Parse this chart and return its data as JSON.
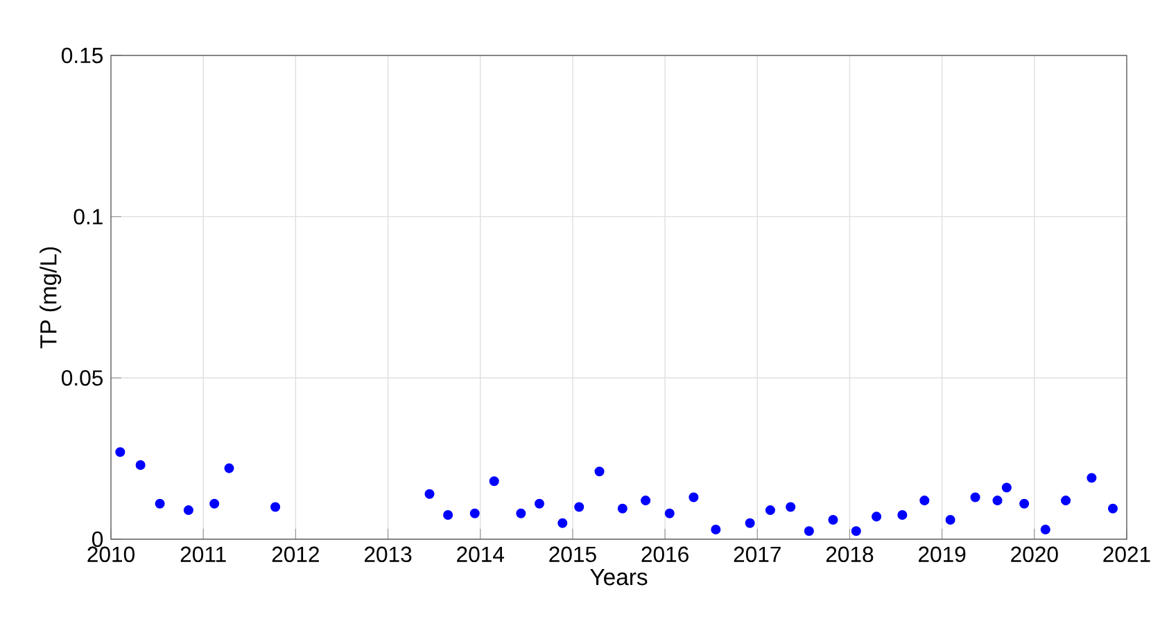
{
  "chart_data": {
    "type": "scatter",
    "xlabel": "Years",
    "ylabel": "TP (mg/L)",
    "x": [
      2010.1,
      2010.32,
      2010.53,
      2010.84,
      2011.12,
      2011.28,
      2011.78,
      2013.45,
      2013.65,
      2013.94,
      2014.15,
      2014.44,
      2014.64,
      2014.89,
      2015.07,
      2015.29,
      2015.54,
      2015.79,
      2016.05,
      2016.31,
      2016.55,
      2016.92,
      2017.14,
      2017.36,
      2017.56,
      2017.82,
      2018.07,
      2018.29,
      2018.57,
      2018.81,
      2019.09,
      2019.36,
      2019.6,
      2019.7,
      2019.89,
      2020.12,
      2020.34,
      2020.62,
      2020.85
    ],
    "values": [
      0.027,
      0.023,
      0.011,
      0.009,
      0.011,
      0.022,
      0.01,
      0.014,
      0.0075,
      0.008,
      0.018,
      0.008,
      0.011,
      0.005,
      0.01,
      0.021,
      0.0095,
      0.012,
      0.008,
      0.013,
      0.003,
      0.005,
      0.009,
      0.01,
      0.0025,
      0.006,
      0.0025,
      0.007,
      0.0075,
      0.012,
      0.006,
      0.013,
      0.012,
      0.016,
      0.011,
      0.003,
      0.012,
      0.019,
      0.0095
    ],
    "color": "#0000ff",
    "marker": "circle",
    "grid": true,
    "xlim": [
      2010,
      2021
    ],
    "xticks": [
      2010,
      2011,
      2012,
      2013,
      2014,
      2015,
      2016,
      2017,
      2018,
      2019,
      2020,
      2021
    ],
    "ylim": [
      0,
      0.15
    ],
    "yticks": [
      0,
      0.05,
      0.1,
      0.15
    ]
  }
}
